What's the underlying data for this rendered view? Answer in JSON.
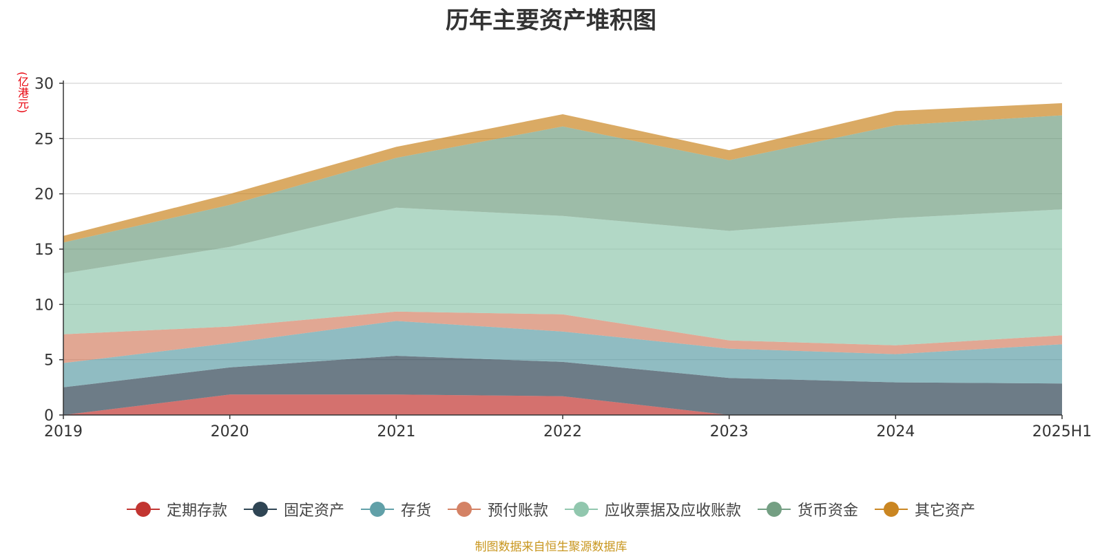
{
  "chart_data": {
    "type": "area",
    "stacked": true,
    "title": "历年主要资产堆积图",
    "unit_label": "(亿港元)",
    "categories": [
      "2019",
      "2020",
      "2021",
      "2022",
      "2023",
      "2024",
      "2025H1"
    ],
    "ylim": [
      0,
      30
    ],
    "yticks": [
      0,
      5,
      10,
      15,
      20,
      25,
      30
    ],
    "grid": true,
    "legend_position": "bottom",
    "series": [
      {
        "name": "定期存款",
        "color": "#c23531",
        "values": [
          0.0,
          1.85,
          1.85,
          1.7,
          0.0,
          0.0,
          0.0
        ]
      },
      {
        "name": "固定资产",
        "color": "#2f4554",
        "values": [
          2.5,
          2.45,
          3.5,
          3.1,
          3.35,
          2.95,
          2.85
        ]
      },
      {
        "name": "存货",
        "color": "#61a0a8",
        "values": [
          2.2,
          2.2,
          3.15,
          2.75,
          2.65,
          2.55,
          3.55
        ]
      },
      {
        "name": "预付账款",
        "color": "#d48265",
        "values": [
          2.6,
          1.5,
          0.85,
          1.55,
          0.75,
          0.8,
          0.8
        ]
      },
      {
        "name": "应收票据及应收账款",
        "color": "#91c7ae",
        "values": [
          5.5,
          7.2,
          9.4,
          8.9,
          9.9,
          11.5,
          11.4
        ]
      },
      {
        "name": "货币资金",
        "color": "#749f83",
        "values": [
          2.8,
          3.8,
          4.5,
          8.1,
          6.4,
          8.4,
          8.5
        ]
      },
      {
        "name": "其它资产",
        "color": "#ca8622",
        "values": [
          0.6,
          1.0,
          1.0,
          1.1,
          0.9,
          1.3,
          1.1
        ]
      }
    ]
  },
  "source_note": "制图数据来自恒生聚源数据库"
}
